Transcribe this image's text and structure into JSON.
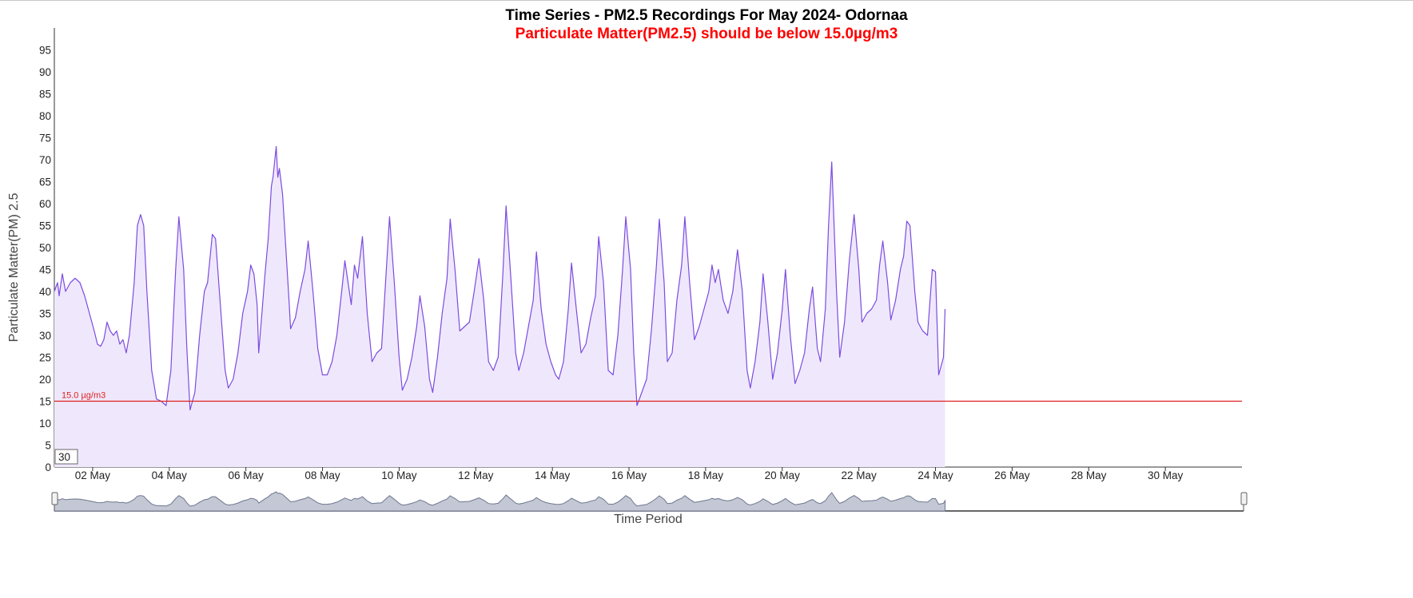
{
  "chart_data": {
    "type": "area",
    "title": "Time Series - PM2.5 Recordings For May 2024- Odornaa",
    "subtitle": "Particulate Matter(PM2.5) should be below 15.0µg/m3",
    "xlabel": "Time Period",
    "ylabel": "Particulate Matter(PM) 2.5",
    "x_range": [
      "2024-05-01",
      "2024-06-01"
    ],
    "ylim": [
      0,
      100
    ],
    "y_ticks": [
      0,
      5,
      10,
      15,
      20,
      25,
      30,
      35,
      40,
      45,
      50,
      55,
      60,
      65,
      70,
      75,
      80,
      85,
      90,
      95
    ],
    "x_ticks": [
      {
        "date": "2024-05-02",
        "label": "02 May"
      },
      {
        "date": "2024-05-04",
        "label": "04 May"
      },
      {
        "date": "2024-05-06",
        "label": "06 May"
      },
      {
        "date": "2024-05-08",
        "label": "08 May"
      },
      {
        "date": "2024-05-10",
        "label": "10 May"
      },
      {
        "date": "2024-05-12",
        "label": "12 May"
      },
      {
        "date": "2024-05-14",
        "label": "14 May"
      },
      {
        "date": "2024-05-16",
        "label": "16 May"
      },
      {
        "date": "2024-05-18",
        "label": "18 May"
      },
      {
        "date": "2024-05-20",
        "label": "20 May"
      },
      {
        "date": "2024-05-22",
        "label": "22 May"
      },
      {
        "date": "2024-05-24",
        "label": "24 May"
      },
      {
        "date": "2024-05-26",
        "label": "26 May"
      },
      {
        "date": "2024-05-28",
        "label": "28 May"
      },
      {
        "date": "2024-05-30",
        "label": "30 May"
      }
    ],
    "reference_line": {
      "value": 15.0,
      "label": "15.0 µg/m3",
      "color": "#e0201f"
    },
    "line_color": "#7b4ce0",
    "fill_color": "#efe8fc",
    "grid": false,
    "rolling_input_value": "30",
    "series": [
      {
        "values": [
          [
            "2024-05-01 00:00",
            40
          ],
          [
            "2024-05-01 02:00",
            42
          ],
          [
            "2024-05-01 03:00",
            39
          ],
          [
            "2024-05-01 05:00",
            44
          ],
          [
            "2024-05-01 07:00",
            40
          ],
          [
            "2024-05-01 10:00",
            42
          ],
          [
            "2024-05-01 13:00",
            43
          ],
          [
            "2024-05-01 16:00",
            42
          ],
          [
            "2024-05-01 19:00",
            39
          ],
          [
            "2024-05-01 22:00",
            35
          ],
          [
            "2024-05-02 01:00",
            31
          ],
          [
            "2024-05-02 03:00",
            28
          ],
          [
            "2024-05-02 05:00",
            27.5
          ],
          [
            "2024-05-02 07:00",
            29
          ],
          [
            "2024-05-02 09:00",
            33
          ],
          [
            "2024-05-02 11:00",
            31
          ],
          [
            "2024-05-02 13:00",
            30
          ],
          [
            "2024-05-02 15:00",
            31
          ],
          [
            "2024-05-02 17:00",
            28
          ],
          [
            "2024-05-02 19:00",
            29
          ],
          [
            "2024-05-02 21:00",
            26
          ],
          [
            "2024-05-02 23:00",
            30
          ],
          [
            "2024-05-03 02:00",
            42
          ],
          [
            "2024-05-03 04:00",
            55
          ],
          [
            "2024-05-03 06:00",
            57.5
          ],
          [
            "2024-05-03 08:00",
            55
          ],
          [
            "2024-05-03 10:00",
            40
          ],
          [
            "2024-05-03 13:00",
            22
          ],
          [
            "2024-05-03 16:00",
            15.5
          ],
          [
            "2024-05-03 19:00",
            15
          ],
          [
            "2024-05-03 22:00",
            14
          ],
          [
            "2024-05-04 01:00",
            22
          ],
          [
            "2024-05-04 04:00",
            45
          ],
          [
            "2024-05-04 06:00",
            57
          ],
          [
            "2024-05-04 09:00",
            45
          ],
          [
            "2024-05-04 11:00",
            27
          ],
          [
            "2024-05-04 13:00",
            13
          ],
          [
            "2024-05-04 16:00",
            17
          ],
          [
            "2024-05-04 19:00",
            30
          ],
          [
            "2024-05-04 22:00",
            40
          ],
          [
            "2024-05-05 00:00",
            42
          ],
          [
            "2024-05-05 03:00",
            53
          ],
          [
            "2024-05-05 05:00",
            52
          ],
          [
            "2024-05-05 08:00",
            37
          ],
          [
            "2024-05-05 11:00",
            22
          ],
          [
            "2024-05-05 13:00",
            18
          ],
          [
            "2024-05-05 16:00",
            20
          ],
          [
            "2024-05-05 19:00",
            26
          ],
          [
            "2024-05-05 22:00",
            35
          ],
          [
            "2024-05-06 01:00",
            40
          ],
          [
            "2024-05-06 03:00",
            46
          ],
          [
            "2024-05-06 05:00",
            44
          ],
          [
            "2024-05-06 07:00",
            37
          ],
          [
            "2024-05-06 08:00",
            26
          ],
          [
            "2024-05-06 10:00",
            35
          ],
          [
            "2024-05-06 12:00",
            44
          ],
          [
            "2024-05-06 14:00",
            52
          ],
          [
            "2024-05-06 16:00",
            64
          ],
          [
            "2024-05-06 17:00",
            66
          ],
          [
            "2024-05-06 19:00",
            73
          ],
          [
            "2024-05-06 20:00",
            66
          ],
          [
            "2024-05-06 21:00",
            68
          ],
          [
            "2024-05-06 23:00",
            62
          ],
          [
            "2024-05-07 00:00",
            56
          ],
          [
            "2024-05-07 01:00",
            50
          ],
          [
            "2024-05-07 03:00",
            38
          ],
          [
            "2024-05-07 04:00",
            31.5
          ],
          [
            "2024-05-07 07:00",
            34
          ],
          [
            "2024-05-07 10:00",
            40
          ],
          [
            "2024-05-07 13:00",
            45
          ],
          [
            "2024-05-07 15:00",
            51.5
          ],
          [
            "2024-05-07 18:00",
            40
          ],
          [
            "2024-05-07 21:00",
            27
          ],
          [
            "2024-05-08 00:00",
            21
          ],
          [
            "2024-05-08 03:00",
            21
          ],
          [
            "2024-05-08 06:00",
            24
          ],
          [
            "2024-05-08 09:00",
            30
          ],
          [
            "2024-05-08 12:00",
            40
          ],
          [
            "2024-05-08 14:00",
            47
          ],
          [
            "2024-05-08 16:00",
            42
          ],
          [
            "2024-05-08 18:00",
            37
          ],
          [
            "2024-05-08 20:00",
            46
          ],
          [
            "2024-05-08 22:00",
            43
          ],
          [
            "2024-05-09 01:00",
            52.5
          ],
          [
            "2024-05-09 04:00",
            35
          ],
          [
            "2024-05-09 07:00",
            24
          ],
          [
            "2024-05-09 10:00",
            26
          ],
          [
            "2024-05-09 13:00",
            27
          ],
          [
            "2024-05-09 16:00",
            45
          ],
          [
            "2024-05-09 18:00",
            57
          ],
          [
            "2024-05-09 21:00",
            42
          ],
          [
            "2024-05-10 00:00",
            25
          ],
          [
            "2024-05-10 02:00",
            17.5
          ],
          [
            "2024-05-10 05:00",
            20
          ],
          [
            "2024-05-10 08:00",
            25
          ],
          [
            "2024-05-10 11:00",
            32
          ],
          [
            "2024-05-10 13:00",
            39
          ],
          [
            "2024-05-10 16:00",
            32
          ],
          [
            "2024-05-10 19:00",
            20
          ],
          [
            "2024-05-10 21:00",
            17
          ],
          [
            "2024-05-11 00:00",
            25
          ],
          [
            "2024-05-11 03:00",
            35
          ],
          [
            "2024-05-11 06:00",
            43
          ],
          [
            "2024-05-11 08:00",
            56.5
          ],
          [
            "2024-05-11 11:00",
            45
          ],
          [
            "2024-05-11 14:00",
            31
          ],
          [
            "2024-05-11 17:00",
            32
          ],
          [
            "2024-05-11 20:00",
            33
          ],
          [
            "2024-05-11 23:00",
            40
          ],
          [
            "2024-05-12 02:00",
            47.5
          ],
          [
            "2024-05-12 05:00",
            38
          ],
          [
            "2024-05-12 08:00",
            24
          ],
          [
            "2024-05-12 11:00",
            22
          ],
          [
            "2024-05-12 14:00",
            25
          ],
          [
            "2024-05-12 17:00",
            44
          ],
          [
            "2024-05-12 19:00",
            59.5
          ],
          [
            "2024-05-12 22:00",
            43
          ],
          [
            "2024-05-13 01:00",
            26
          ],
          [
            "2024-05-13 03:00",
            22
          ],
          [
            "2024-05-13 06:00",
            26
          ],
          [
            "2024-05-13 09:00",
            32
          ],
          [
            "2024-05-13 12:00",
            38
          ],
          [
            "2024-05-13 14:00",
            49
          ],
          [
            "2024-05-13 17:00",
            36
          ],
          [
            "2024-05-13 20:00",
            28
          ],
          [
            "2024-05-13 23:00",
            24
          ],
          [
            "2024-05-14 02:00",
            21
          ],
          [
            "2024-05-14 04:00",
            20
          ],
          [
            "2024-05-14 07:00",
            24
          ],
          [
            "2024-05-14 10:00",
            36
          ],
          [
            "2024-05-14 12:00",
            46.5
          ],
          [
            "2024-05-14 15:00",
            36
          ],
          [
            "2024-05-14 18:00",
            26
          ],
          [
            "2024-05-14 21:00",
            28
          ],
          [
            "2024-05-15 00:00",
            34
          ],
          [
            "2024-05-15 03:00",
            39
          ],
          [
            "2024-05-15 05:00",
            52.5
          ],
          [
            "2024-05-15 08:00",
            42
          ],
          [
            "2024-05-15 11:00",
            22
          ],
          [
            "2024-05-15 14:00",
            21
          ],
          [
            "2024-05-15 17:00",
            30
          ],
          [
            "2024-05-15 20:00",
            45
          ],
          [
            "2024-05-15 22:00",
            57
          ],
          [
            "2024-05-16 01:00",
            45
          ],
          [
            "2024-05-16 03:00",
            26
          ],
          [
            "2024-05-16 05:00",
            14
          ],
          [
            "2024-05-16 08:00",
            17
          ],
          [
            "2024-05-16 11:00",
            20
          ],
          [
            "2024-05-16 14:00",
            31
          ],
          [
            "2024-05-16 17:00",
            45
          ],
          [
            "2024-05-16 19:00",
            56.5
          ],
          [
            "2024-05-16 22:00",
            42
          ],
          [
            "2024-05-17 00:00",
            24
          ],
          [
            "2024-05-17 03:00",
            26
          ],
          [
            "2024-05-17 06:00",
            38
          ],
          [
            "2024-05-17 09:00",
            46
          ],
          [
            "2024-05-17 11:00",
            57
          ],
          [
            "2024-05-17 14:00",
            42
          ],
          [
            "2024-05-17 17:00",
            29
          ],
          [
            "2024-05-17 20:00",
            32
          ],
          [
            "2024-05-17 23:00",
            36
          ],
          [
            "2024-05-18 02:00",
            40
          ],
          [
            "2024-05-18 04:00",
            46
          ],
          [
            "2024-05-18 06:00",
            42
          ],
          [
            "2024-05-18 08:00",
            45
          ],
          [
            "2024-05-18 11:00",
            38
          ],
          [
            "2024-05-18 14:00",
            35
          ],
          [
            "2024-05-18 17:00",
            40
          ],
          [
            "2024-05-18 20:00",
            49.5
          ],
          [
            "2024-05-18 23:00",
            40
          ],
          [
            "2024-05-19 02:00",
            22
          ],
          [
            "2024-05-19 04:00",
            18
          ],
          [
            "2024-05-19 07:00",
            24
          ],
          [
            "2024-05-19 10:00",
            33
          ],
          [
            "2024-05-19 12:00",
            44
          ],
          [
            "2024-05-19 15:00",
            33
          ],
          [
            "2024-05-19 18:00",
            20
          ],
          [
            "2024-05-19 21:00",
            26
          ],
          [
            "2024-05-20 00:00",
            36
          ],
          [
            "2024-05-20 02:00",
            45
          ],
          [
            "2024-05-20 05:00",
            30
          ],
          [
            "2024-05-20 08:00",
            19
          ],
          [
            "2024-05-20 11:00",
            22
          ],
          [
            "2024-05-20 14:00",
            26
          ],
          [
            "2024-05-20 17:00",
            36
          ],
          [
            "2024-05-20 19:00",
            41
          ],
          [
            "2024-05-20 22:00",
            27
          ],
          [
            "2024-05-21 00:00",
            24
          ],
          [
            "2024-05-21 03:00",
            36
          ],
          [
            "2024-05-21 05:00",
            55
          ],
          [
            "2024-05-21 07:00",
            69.5
          ],
          [
            "2024-05-21 10:00",
            40
          ],
          [
            "2024-05-21 12:00",
            25
          ],
          [
            "2024-05-21 15:00",
            33
          ],
          [
            "2024-05-21 18:00",
            47
          ],
          [
            "2024-05-21 21:00",
            57.5
          ],
          [
            "2024-05-22 00:00",
            45
          ],
          [
            "2024-05-22 02:00",
            33
          ],
          [
            "2024-05-22 05:00",
            35
          ],
          [
            "2024-05-22 08:00",
            36
          ],
          [
            "2024-05-22 11:00",
            38
          ],
          [
            "2024-05-22 13:00",
            46
          ],
          [
            "2024-05-22 15:00",
            51.5
          ],
          [
            "2024-05-22 18:00",
            42
          ],
          [
            "2024-05-22 20:00",
            33.5
          ],
          [
            "2024-05-22 23:00",
            38
          ],
          [
            "2024-05-23 02:00",
            45
          ],
          [
            "2024-05-23 04:00",
            48
          ],
          [
            "2024-05-23 06:00",
            56
          ],
          [
            "2024-05-23 08:00",
            55
          ],
          [
            "2024-05-23 11:00",
            40
          ],
          [
            "2024-05-23 13:00",
            33
          ],
          [
            "2024-05-23 16:00",
            31
          ],
          [
            "2024-05-23 19:00",
            30
          ],
          [
            "2024-05-23 22:00",
            45
          ],
          [
            "2024-05-24 00:00",
            44.5
          ],
          [
            "2024-05-24 02:00",
            21
          ],
          [
            "2024-05-24 05:00",
            25
          ],
          [
            "2024-05-24 06:00",
            36
          ]
        ]
      }
    ]
  },
  "navigator": {
    "label": "Time Period"
  }
}
